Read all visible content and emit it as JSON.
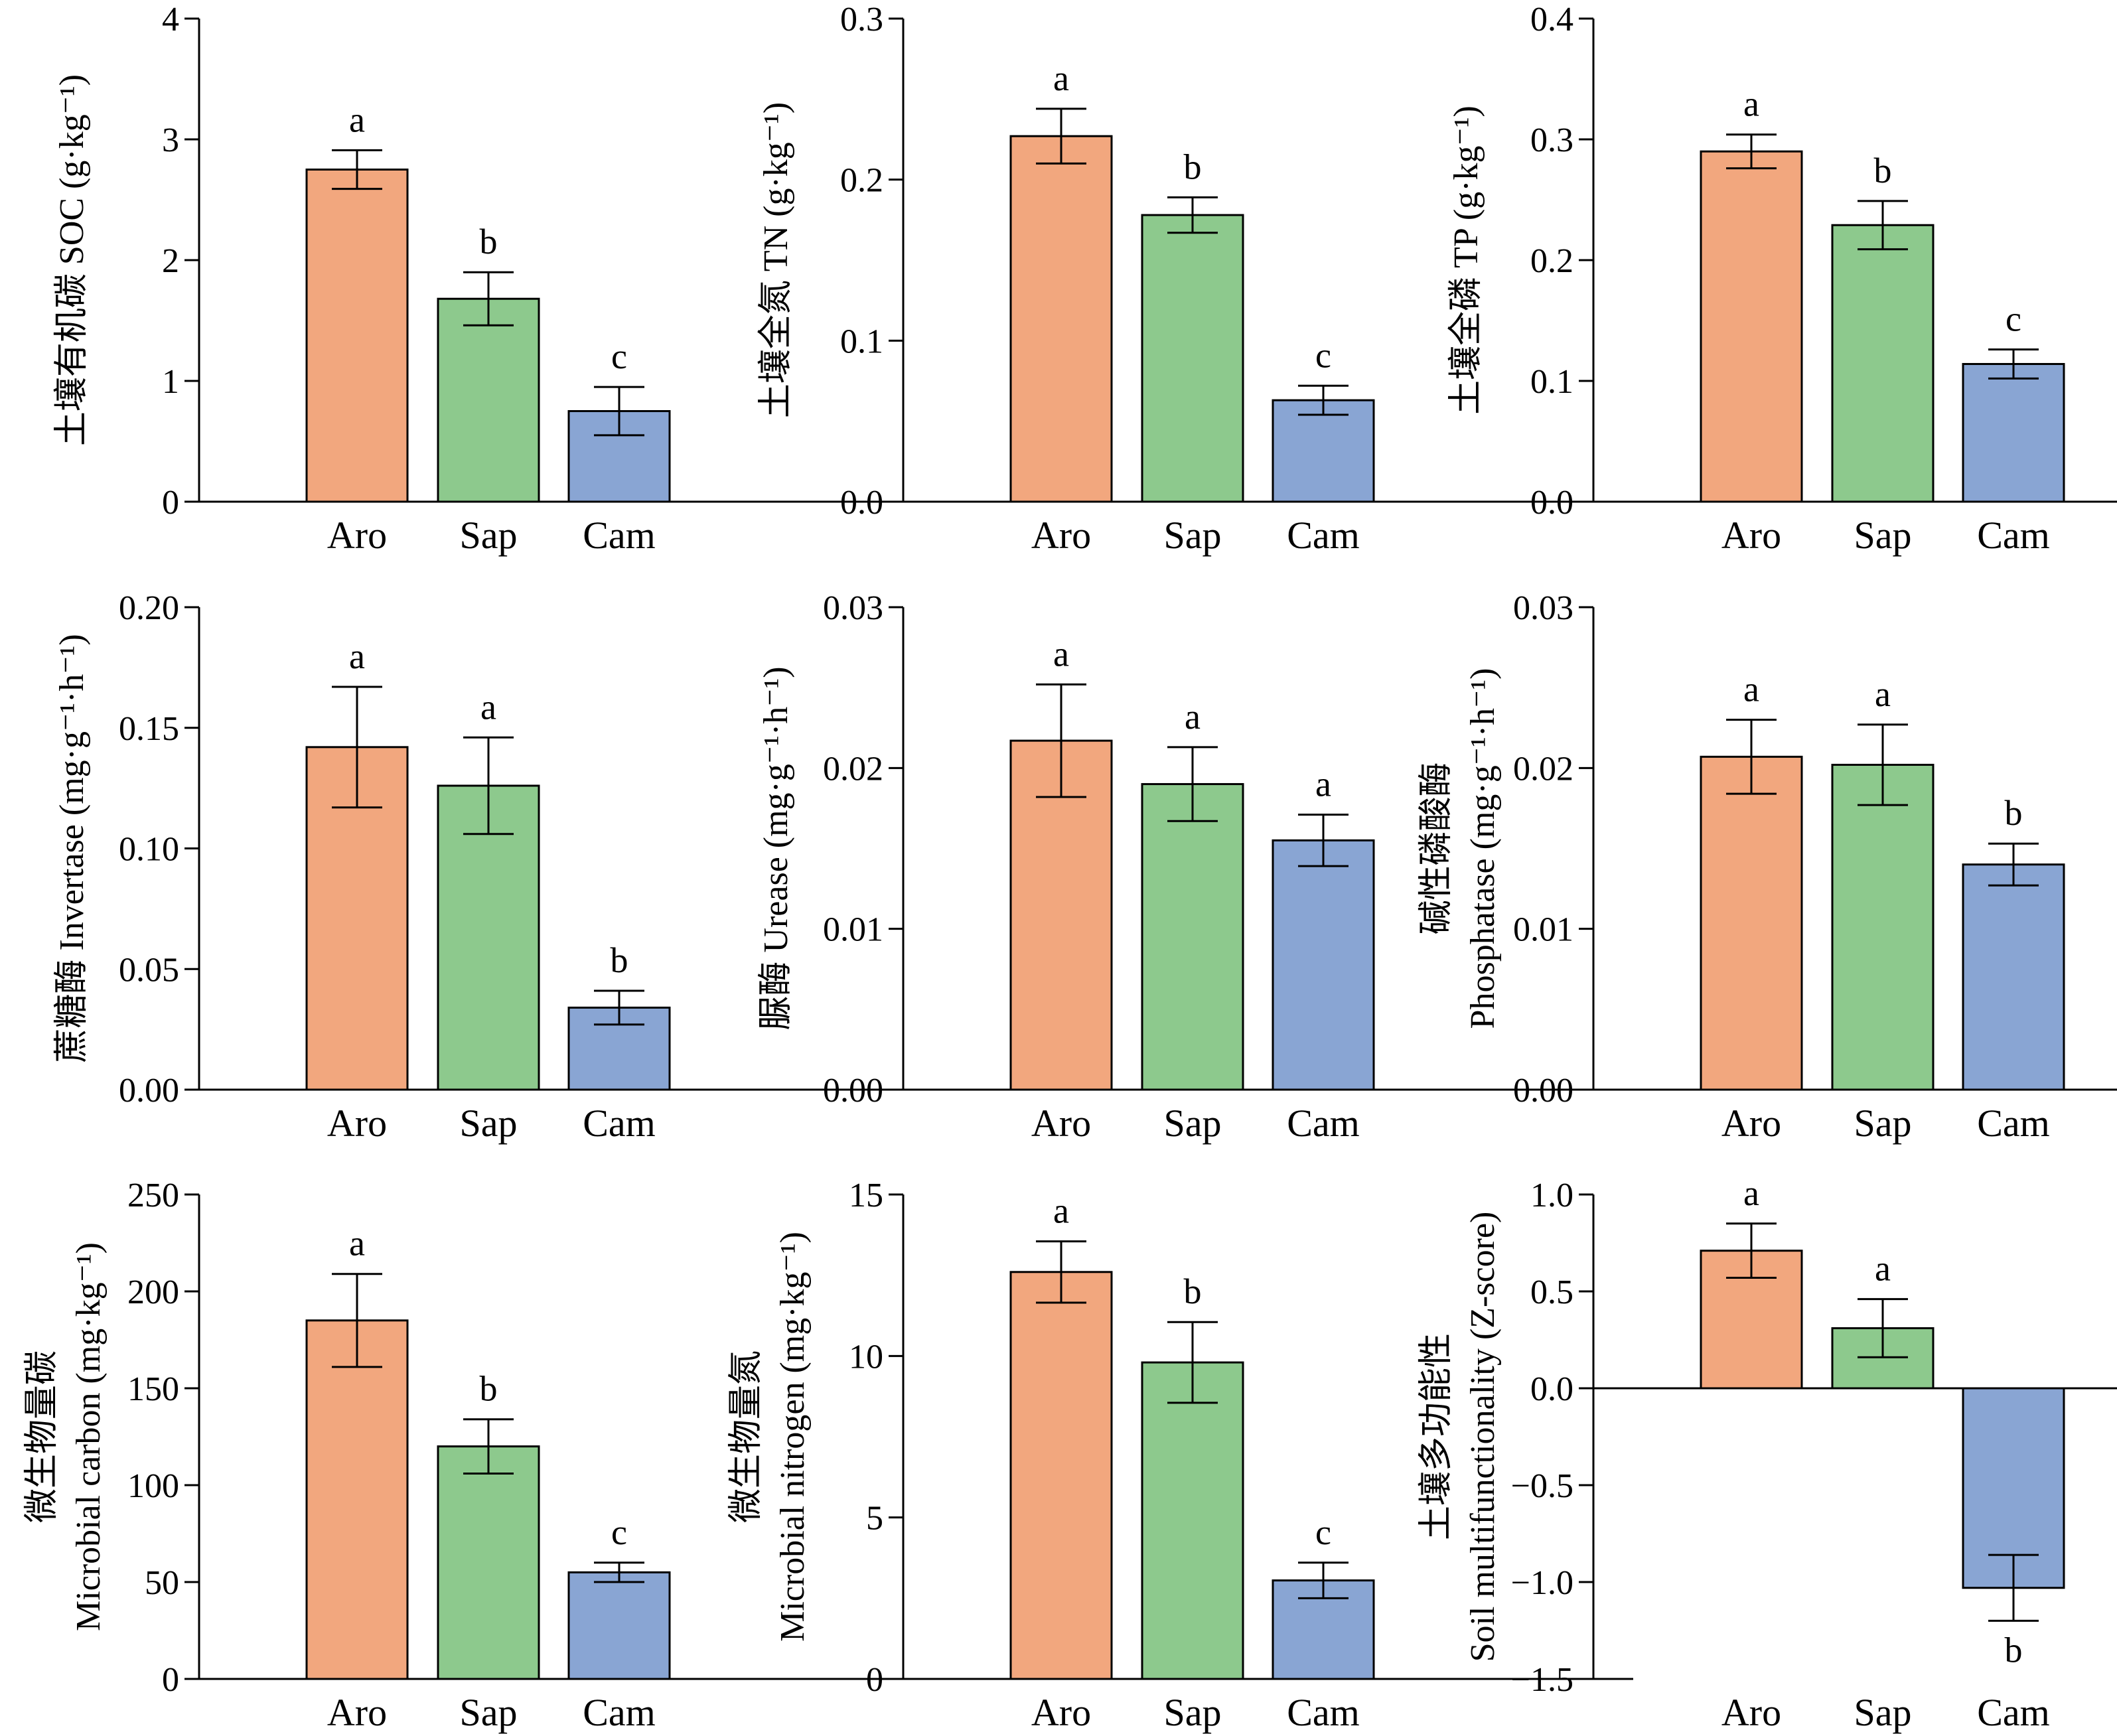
{
  "chart_data": [
    {
      "type": "bar",
      "categories": [
        "Aro",
        "Sap",
        "Cam"
      ],
      "ylabel_lines": [
        "土壤有机碳 SOC (g·kg⁻¹)"
      ],
      "ylim": [
        0,
        4
      ],
      "yticks": [
        "0",
        "1",
        "2",
        "3",
        "4"
      ],
      "values": [
        2.75,
        1.68,
        0.75
      ],
      "errors": [
        0.16,
        0.22,
        0.2
      ],
      "letters": [
        "a",
        "b",
        "c"
      ],
      "colors": [
        "#F2A77E",
        "#8DC98D",
        "#89A5D3"
      ],
      "grid": false
    },
    {
      "type": "bar",
      "categories": [
        "Aro",
        "Sap",
        "Cam"
      ],
      "ylabel_lines": [
        "土壤全氮 TN (g·kg⁻¹)"
      ],
      "ylim": [
        0,
        0.3
      ],
      "yticks": [
        "0.0",
        "0.1",
        "0.2",
        "0.3"
      ],
      "values": [
        0.227,
        0.178,
        0.063
      ],
      "errors": [
        0.017,
        0.011,
        0.009
      ],
      "letters": [
        "a",
        "b",
        "c"
      ],
      "colors": [
        "#F2A77E",
        "#8DC98D",
        "#89A5D3"
      ],
      "grid": false
    },
    {
      "type": "bar",
      "categories": [
        "Aro",
        "Sap",
        "Cam"
      ],
      "ylabel_lines": [
        "土壤全磷 TP (g·kg⁻¹)"
      ],
      "ylim": [
        0,
        0.4
      ],
      "yticks": [
        "0.0",
        "0.1",
        "0.2",
        "0.3",
        "0.4"
      ],
      "values": [
        0.29,
        0.229,
        0.114
      ],
      "errors": [
        0.014,
        0.02,
        0.012
      ],
      "letters": [
        "a",
        "b",
        "c"
      ],
      "colors": [
        "#F2A77E",
        "#8DC98D",
        "#89A5D3"
      ],
      "grid": false
    },
    {
      "type": "bar",
      "categories": [
        "Aro",
        "Sap",
        "Cam"
      ],
      "ylabel_lines": [
        "蔗糖酶 Invertase (mg·g⁻¹·h⁻¹)"
      ],
      "ylim": [
        0,
        0.2
      ],
      "yticks": [
        "0.00",
        "0.05",
        "0.10",
        "0.15",
        "0.20"
      ],
      "values": [
        0.142,
        0.126,
        0.034
      ],
      "errors": [
        0.025,
        0.02,
        0.007
      ],
      "letters": [
        "a",
        "a",
        "b"
      ],
      "colors": [
        "#F2A77E",
        "#8DC98D",
        "#89A5D3"
      ],
      "grid": false
    },
    {
      "type": "bar",
      "categories": [
        "Aro",
        "Sap",
        "Cam"
      ],
      "ylabel_lines": [
        "脲酶 Urease (mg·g⁻¹·h⁻¹)"
      ],
      "ylim": [
        0,
        0.03
      ],
      "yticks": [
        "0.00",
        "0.01",
        "0.02",
        "0.03"
      ],
      "values": [
        0.0217,
        0.019,
        0.0155
      ],
      "errors": [
        0.0035,
        0.0023,
        0.0016
      ],
      "letters": [
        "a",
        "a",
        "a"
      ],
      "colors": [
        "#F2A77E",
        "#8DC98D",
        "#89A5D3"
      ],
      "grid": false
    },
    {
      "type": "bar",
      "categories": [
        "Aro",
        "Sap",
        "Cam"
      ],
      "ylabel_lines": [
        "碱性磷酸酶",
        "Phosphatase (mg·g⁻¹·h⁻¹)"
      ],
      "ylim": [
        0,
        0.03
      ],
      "yticks": [
        "0.00",
        "0.01",
        "0.02",
        "0.03"
      ],
      "values": [
        0.0207,
        0.0202,
        0.014
      ],
      "errors": [
        0.0023,
        0.0025,
        0.0013
      ],
      "letters": [
        "a",
        "a",
        "b"
      ],
      "colors": [
        "#F2A77E",
        "#8DC98D",
        "#89A5D3"
      ],
      "grid": false
    },
    {
      "type": "bar",
      "categories": [
        "Aro",
        "Sap",
        "Cam"
      ],
      "ylabel_lines": [
        "微生物量碳",
        "Microbial carbon (mg·kg⁻¹)"
      ],
      "ylim": [
        0,
        250
      ],
      "yticks": [
        "0",
        "50",
        "100",
        "150",
        "200",
        "250"
      ],
      "values": [
        185,
        120,
        55
      ],
      "errors": [
        24,
        14,
        5
      ],
      "letters": [
        "a",
        "b",
        "c"
      ],
      "colors": [
        "#F2A77E",
        "#8DC98D",
        "#89A5D3"
      ],
      "grid": false
    },
    {
      "type": "bar",
      "categories": [
        "Aro",
        "Sap",
        "Cam"
      ],
      "ylabel_lines": [
        "微生物量氮",
        "Microbial nitrogen (mg·kg⁻¹)"
      ],
      "ylim": [
        0,
        15
      ],
      "yticks": [
        "0",
        "5",
        "10",
        "15"
      ],
      "values": [
        12.6,
        9.8,
        3.05
      ],
      "errors": [
        0.95,
        1.25,
        0.55
      ],
      "letters": [
        "a",
        "b",
        "c"
      ],
      "colors": [
        "#F2A77E",
        "#8DC98D",
        "#89A5D3"
      ],
      "grid": false
    },
    {
      "type": "bar",
      "categories": [
        "Aro",
        "Sap",
        "Cam"
      ],
      "ylabel_lines": [
        "土壤多功能性",
        "Soil multifunctionality (Z-score)"
      ],
      "ylim": [
        -1.5,
        1
      ],
      "yticks": [
        "−1.5",
        "−1.0",
        "−0.5",
        "0.0",
        "0.5",
        "1.0"
      ],
      "values": [
        0.71,
        0.31,
        -1.03
      ],
      "errors": [
        0.14,
        0.15,
        0.17
      ],
      "letters": [
        "a",
        "a",
        "b"
      ],
      "colors": [
        "#F2A77E",
        "#8DC98D",
        "#89A5D3"
      ],
      "zero_line": true,
      "grid": false
    }
  ]
}
